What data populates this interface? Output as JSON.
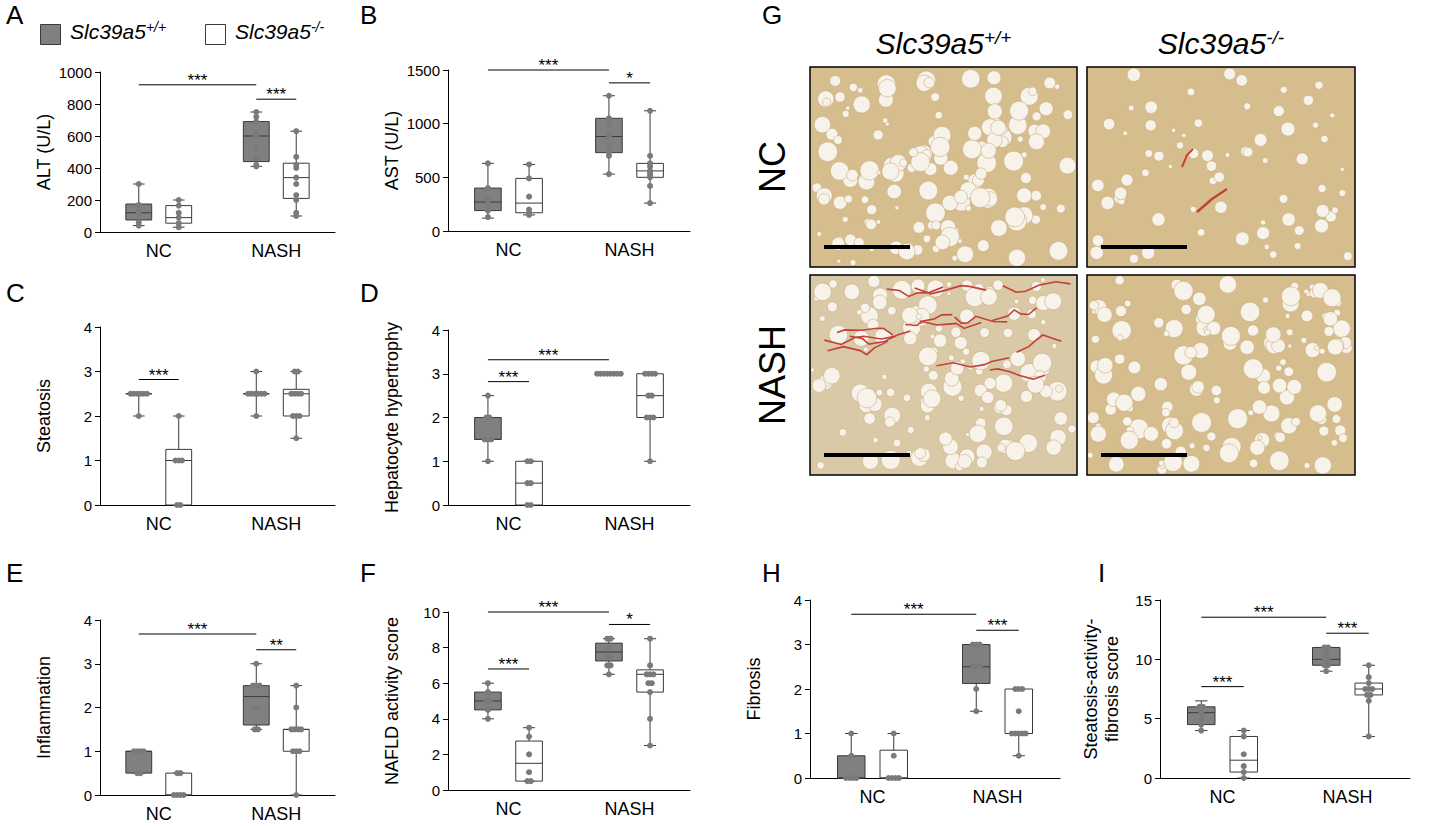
{
  "chart_data": [
    {
      "panel": "A",
      "type": "boxplot",
      "ylabel": "ALT (U/L)",
      "categories": [
        "NC",
        "NASH"
      ],
      "ylim": [
        0,
        1000
      ],
      "yticks": [
        0,
        200,
        400,
        600,
        800,
        1000
      ],
      "grid": false,
      "legend": "top",
      "series": [
        {
          "name": "Slc39a5+/+",
          "color": "#808080",
          "values": [
            [
              40,
              75,
              120,
              175,
              300
            ],
            [
              410,
              440,
              600,
              690,
              750
            ]
          ],
          "points": [
            [
              300,
              170,
              130,
              110,
              60,
              40
            ],
            [
              750,
              720,
              690,
              620,
              600,
              520,
              460,
              420,
              410
            ]
          ]
        },
        {
          "name": "Slc39a5-/-",
          "color": "#ffffff",
          "values": [
            [
              30,
              55,
              90,
              165,
              200
            ],
            [
              100,
              210,
              340,
              430,
              630
            ]
          ],
          "points": [
            [
              200,
              165,
              120,
              90,
              55,
              30
            ],
            [
              630,
              470,
              420,
              400,
              340,
              300,
              230,
              200,
              120,
              100
            ]
          ]
        }
      ],
      "annotations": [
        {
          "text": "***",
          "pair": [
            {
              "category": "NC",
              "series": "Slc39a5+/+"
            },
            {
              "category": "NASH",
              "series": "Slc39a5+/+"
            }
          ]
        },
        {
          "text": "***",
          "pair": [
            {
              "category": "NASH",
              "series": "Slc39a5+/+"
            },
            {
              "category": "NASH",
              "series": "Slc39a5-/-"
            }
          ]
        }
      ]
    },
    {
      "panel": "B",
      "type": "boxplot",
      "ylabel": "AST (U/L)",
      "categories": [
        "NC",
        "NASH"
      ],
      "ylim": [
        0,
        1500
      ],
      "yticks": [
        0,
        500,
        1000,
        1500
      ],
      "grid": false,
      "series": [
        {
          "name": "Slc39a5+/+",
          "color": "#808080",
          "values": [
            [
              120,
              190,
              270,
              400,
              630
            ],
            [
              530,
              730,
              880,
              1050,
              1260
            ]
          ],
          "points": [
            [
              630,
              400,
              300,
              260,
              190,
              130
            ],
            [
              1260,
              1050,
              1000,
              900,
              880,
              800,
              730,
              700,
              530
            ]
          ]
        },
        {
          "name": "Slc39a5-/-",
          "color": "#ffffff",
          "values": [
            [
              150,
              170,
              260,
              490,
              620
            ],
            [
              260,
              500,
              560,
              630,
              1120
            ]
          ],
          "points": [
            [
              620,
              490,
              320,
              200,
              170,
              150
            ],
            [
              1120,
              700,
              630,
              600,
              560,
              540,
              520,
              500,
              420,
              260
            ]
          ]
        }
      ],
      "annotations": [
        {
          "text": "***",
          "pair": [
            {
              "category": "NC",
              "series": "Slc39a5+/+"
            },
            {
              "category": "NASH",
              "series": "Slc39a5+/+"
            }
          ]
        },
        {
          "text": "*",
          "pair": [
            {
              "category": "NASH",
              "series": "Slc39a5+/+"
            },
            {
              "category": "NASH",
              "series": "Slc39a5-/-"
            }
          ]
        }
      ]
    },
    {
      "panel": "C",
      "type": "boxplot",
      "ylabel": "Steatosis",
      "categories": [
        "NC",
        "NASH"
      ],
      "ylim": [
        0,
        4
      ],
      "yticks": [
        0,
        1,
        2,
        3,
        4
      ],
      "grid": false,
      "series": [
        {
          "name": "Slc39a5+/+",
          "color": "#808080",
          "values": [
            [
              2,
              2.5,
              2.5,
              2.5,
              2.5
            ],
            [
              2,
              2.5,
              2.5,
              2.5,
              3
            ]
          ],
          "points": [
            [
              2.5,
              2.5,
              2.5,
              2.5,
              2.5,
              2.5,
              2
            ],
            [
              3,
              2.5,
              2.5,
              2.5,
              2.5,
              2.5,
              2.5,
              2
            ]
          ]
        },
        {
          "name": "Slc39a5-/-",
          "color": "#ffffff",
          "values": [
            [
              0,
              0,
              1,
              1.25,
              2
            ],
            [
              1.5,
              2,
              2.5,
              2.6,
              3
            ]
          ],
          "points": [
            [
              2,
              1,
              1,
              1,
              0,
              0
            ],
            [
              3,
              3,
              2.5,
              2.5,
              2.5,
              2.5,
              2,
              2,
              2,
              1.5
            ]
          ]
        }
      ],
      "annotations": [
        {
          "text": "***",
          "pair": [
            {
              "category": "NC",
              "series": "Slc39a5+/+"
            },
            {
              "category": "NC",
              "series": "Slc39a5-/-"
            }
          ]
        }
      ]
    },
    {
      "panel": "D",
      "type": "boxplot",
      "ylabel": "Hepatocyte hypertrophy",
      "categories": [
        "NC",
        "NASH"
      ],
      "ylim": [
        0,
        4
      ],
      "yticks": [
        0,
        1,
        2,
        3,
        4
      ],
      "grid": false,
      "series": [
        {
          "name": "Slc39a5+/+",
          "color": "#808080",
          "values": [
            [
              1,
              1.5,
              1.5,
              2,
              2.5
            ],
            [
              3,
              3,
              3,
              3,
              3
            ]
          ],
          "points": [
            [
              2.5,
              2,
              2,
              1.5,
              1.5,
              1.5,
              1
            ],
            [
              3,
              3,
              3,
              3,
              3,
              3,
              3,
              3
            ]
          ]
        },
        {
          "name": "Slc39a5-/-",
          "color": "#ffffff",
          "values": [
            [
              0,
              0,
              0.5,
              1,
              1
            ],
            [
              1,
              2,
              2.5,
              3,
              3
            ]
          ],
          "points": [
            [
              1,
              1,
              0.5,
              0.5,
              0,
              0
            ],
            [
              3,
              3,
              3,
              3,
              2.5,
              2.5,
              2,
              2,
              2,
              1
            ]
          ]
        }
      ],
      "annotations": [
        {
          "text": "***",
          "pair": [
            {
              "category": "NC",
              "series": "Slc39a5+/+"
            },
            {
              "category": "NASH",
              "series": "Slc39a5+/+"
            }
          ]
        },
        {
          "text": "***",
          "pair": [
            {
              "category": "NC",
              "series": "Slc39a5+/+"
            },
            {
              "category": "NC",
              "series": "Slc39a5-/-"
            }
          ]
        }
      ]
    },
    {
      "panel": "E",
      "type": "boxplot",
      "ylabel": "Inflammation",
      "categories": [
        "NC",
        "NASH"
      ],
      "ylim": [
        0,
        4
      ],
      "yticks": [
        0,
        1,
        2,
        3,
        4
      ],
      "grid": false,
      "series": [
        {
          "name": "Slc39a5+/+",
          "color": "#808080",
          "values": [
            [
              0.5,
              0.5,
              1,
              1,
              1
            ],
            [
              1.5,
              1.6,
              2.25,
              2.5,
              3
            ]
          ],
          "points": [
            [
              1,
              1,
              1,
              1,
              0.5,
              0.5
            ],
            [
              3,
              2.5,
              2.5,
              2.5,
              2,
              2,
              1.5,
              1.5
            ]
          ]
        },
        {
          "name": "Slc39a5-/-",
          "color": "#ffffff",
          "values": [
            [
              0,
              0,
              0,
              0.5,
              0.5
            ],
            [
              0,
              1,
              1.5,
              1.5,
              2.5
            ]
          ],
          "points": [
            [
              0.5,
              0.5,
              0,
              0,
              0,
              0
            ],
            [
              2.5,
              2,
              1.5,
              1.5,
              1.5,
              1.5,
              1,
              1,
              1,
              0
            ]
          ]
        }
      ],
      "annotations": [
        {
          "text": "***",
          "pair": [
            {
              "category": "NC",
              "series": "Slc39a5+/+"
            },
            {
              "category": "NASH",
              "series": "Slc39a5+/+"
            }
          ]
        },
        {
          "text": "**",
          "pair": [
            {
              "category": "NASH",
              "series": "Slc39a5+/+"
            },
            {
              "category": "NASH",
              "series": "Slc39a5-/-"
            }
          ]
        }
      ]
    },
    {
      "panel": "F",
      "type": "boxplot",
      "ylabel": "NAFLD activity score",
      "categories": [
        "NC",
        "NASH"
      ],
      "ylim": [
        0,
        10
      ],
      "yticks": [
        0,
        2,
        4,
        6,
        8,
        10
      ],
      "grid": false,
      "series": [
        {
          "name": "Slc39a5+/+",
          "color": "#808080",
          "values": [
            [
              4,
              4.5,
              5,
              5.5,
              6
            ],
            [
              6.5,
              7.25,
              7.75,
              8.25,
              8.5
            ]
          ],
          "points": [
            [
              6,
              5.5,
              5,
              5,
              4.5,
              4
            ],
            [
              8.5,
              8.5,
              8,
              7.5,
              7.5,
              7,
              7,
              6.5
            ]
          ]
        },
        {
          "name": "Slc39a5-/-",
          "color": "#ffffff",
          "values": [
            [
              0.5,
              0.5,
              1.5,
              2.75,
              3.5
            ],
            [
              2.5,
              5.5,
              6.5,
              6.75,
              8.5
            ]
          ],
          "points": [
            [
              3.5,
              3,
              2,
              1,
              0.5,
              0.5
            ],
            [
              8.5,
              7,
              6.5,
              6.5,
              6.5,
              6,
              6,
              5.5,
              4,
              2.5
            ]
          ]
        }
      ],
      "annotations": [
        {
          "text": "***",
          "pair": [
            {
              "category": "NC",
              "series": "Slc39a5+/+"
            },
            {
              "category": "NASH",
              "series": "Slc39a5+/+"
            }
          ]
        },
        {
          "text": "***",
          "pair": [
            {
              "category": "NC",
              "series": "Slc39a5+/+"
            },
            {
              "category": "NC",
              "series": "Slc39a5-/-"
            }
          ]
        },
        {
          "text": "*",
          "pair": [
            {
              "category": "NASH",
              "series": "Slc39a5+/+"
            },
            {
              "category": "NASH",
              "series": "Slc39a5-/-"
            }
          ]
        }
      ]
    },
    {
      "panel": "H",
      "type": "boxplot",
      "ylabel": "Fibrosis",
      "categories": [
        "NC",
        "NASH"
      ],
      "ylim": [
        0,
        4
      ],
      "yticks": [
        0,
        1,
        2,
        3,
        4
      ],
      "grid": false,
      "series": [
        {
          "name": "Slc39a5+/+",
          "color": "#808080",
          "values": [
            [
              0,
              0,
              0,
              0.5,
              1
            ],
            [
              1.5,
              2.125,
              2.5,
              3,
              3
            ]
          ],
          "points": [
            [
              1,
              0.5,
              0,
              0,
              0,
              0
            ],
            [
              3,
              3,
              3,
              2.5,
              2.5,
              2.5,
              2,
              1.5
            ]
          ]
        },
        {
          "name": "Slc39a5-/-",
          "color": "#ffffff",
          "values": [
            [
              0,
              0,
              0,
              0.625,
              1
            ],
            [
              0.5,
              1,
              1,
              2,
              2
            ]
          ],
          "points": [
            [
              1,
              0.5,
              0,
              0,
              0,
              0
            ],
            [
              2,
              2,
              2,
              1.5,
              1,
              1,
              1,
              1,
              1,
              0.5
            ]
          ]
        }
      ],
      "annotations": [
        {
          "text": "***",
          "pair": [
            {
              "category": "NC",
              "series": "Slc39a5+/+"
            },
            {
              "category": "NASH",
              "series": "Slc39a5+/+"
            }
          ]
        },
        {
          "text": "***",
          "pair": [
            {
              "category": "NASH",
              "series": "Slc39a5+/+"
            },
            {
              "category": "NASH",
              "series": "Slc39a5-/-"
            }
          ]
        }
      ]
    },
    {
      "panel": "I",
      "type": "boxplot",
      "ylabel": "Steatosis-activity-\nfibrosis score",
      "categories": [
        "NC",
        "NASH"
      ],
      "ylim": [
        0,
        15
      ],
      "yticks": [
        0,
        5,
        10,
        15
      ],
      "grid": false,
      "series": [
        {
          "name": "Slc39a5+/+",
          "color": "#808080",
          "values": [
            [
              4,
              4.5,
              5.5,
              6,
              6.5
            ],
            [
              9,
              9.5,
              10,
              11,
              11
            ]
          ],
          "points": [
            [
              6,
              6,
              5.5,
              5,
              4.5,
              4
            ],
            [
              11,
              11,
              10.5,
              10,
              10,
              9.5,
              9.5,
              9
            ]
          ]
        },
        {
          "name": "Slc39a5-/-",
          "color": "#ffffff",
          "values": [
            [
              0,
              0.5,
              1.5,
              3.5,
              4
            ],
            [
              3.5,
              7,
              7.5,
              8,
              9.5
            ]
          ],
          "points": [
            [
              4,
              3.5,
              2,
              1,
              0.5,
              0
            ],
            [
              9.5,
              8.5,
              8,
              7.5,
              7.5,
              7.5,
              7,
              7,
              6.5,
              3.5
            ]
          ]
        }
      ],
      "annotations": [
        {
          "text": "***",
          "pair": [
            {
              "category": "NC",
              "series": "Slc39a5+/+"
            },
            {
              "category": "NASH",
              "series": "Slc39a5+/+"
            }
          ]
        },
        {
          "text": "***",
          "pair": [
            {
              "category": "NC",
              "series": "Slc39a5+/+"
            },
            {
              "category": "NC",
              "series": "Slc39a5-/-"
            }
          ]
        },
        {
          "text": "***",
          "pair": [
            {
              "category": "NASH",
              "series": "Slc39a5+/+"
            },
            {
              "category": "NASH",
              "series": "Slc39a5-/-"
            }
          ]
        }
      ]
    }
  ],
  "histology": {
    "panel": "G",
    "columns": [
      "Slc39a5+/+",
      "Slc39a5-/-"
    ],
    "rows": [
      "NC",
      "NASH"
    ]
  }
}
